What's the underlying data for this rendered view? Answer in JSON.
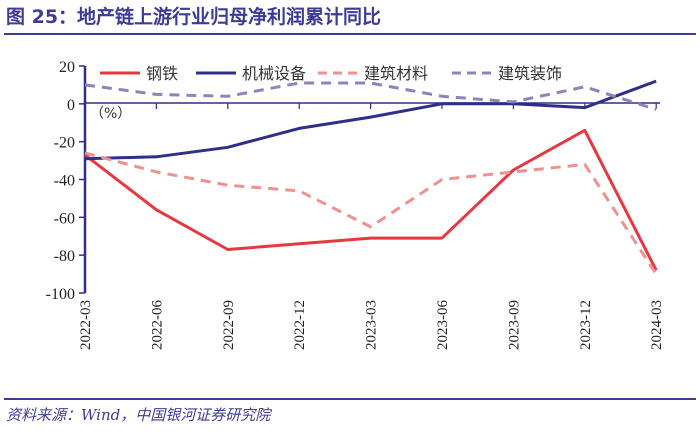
{
  "header": {
    "title": "图 25：地产链上游行业归母净利润累计同比"
  },
  "footer": {
    "source": "资料来源：Wind，中国银河证券研究院"
  },
  "chart_data": {
    "type": "line",
    "title": "图 25：地产链上游行业归母净利润累计同比",
    "unit_label": "（%）",
    "categories": [
      "2022-03",
      "2022-06",
      "2022-09",
      "2022-12",
      "2023-03",
      "2023-06",
      "2023-09",
      "2023-12",
      "2024-03"
    ],
    "ylim": [
      -100,
      20
    ],
    "yticks": [
      20,
      0,
      -20,
      -40,
      -60,
      -80,
      -100
    ],
    "legend_position": "top",
    "series": [
      {
        "name": "钢铁",
        "color": "#e8373f",
        "style": "solid",
        "values": [
          -27,
          -56,
          -77,
          -74,
          -71,
          -71,
          -35,
          -14,
          -88
        ]
      },
      {
        "name": "机械设备",
        "color": "#2f2f8a",
        "style": "solid",
        "values": [
          -29,
          -28,
          -23,
          -13,
          -7,
          0,
          0,
          -2,
          12
        ]
      },
      {
        "name": "建筑材料",
        "color": "#f09090",
        "style": "dashed",
        "values": [
          -26,
          -36,
          -43,
          -46,
          -65,
          -40,
          -36,
          -32,
          -90
        ]
      },
      {
        "name": "建筑装饰",
        "color": "#8c84bc",
        "style": "dashed",
        "values": [
          10,
          5,
          4,
          11,
          11,
          4,
          1,
          9,
          -3
        ]
      }
    ]
  }
}
